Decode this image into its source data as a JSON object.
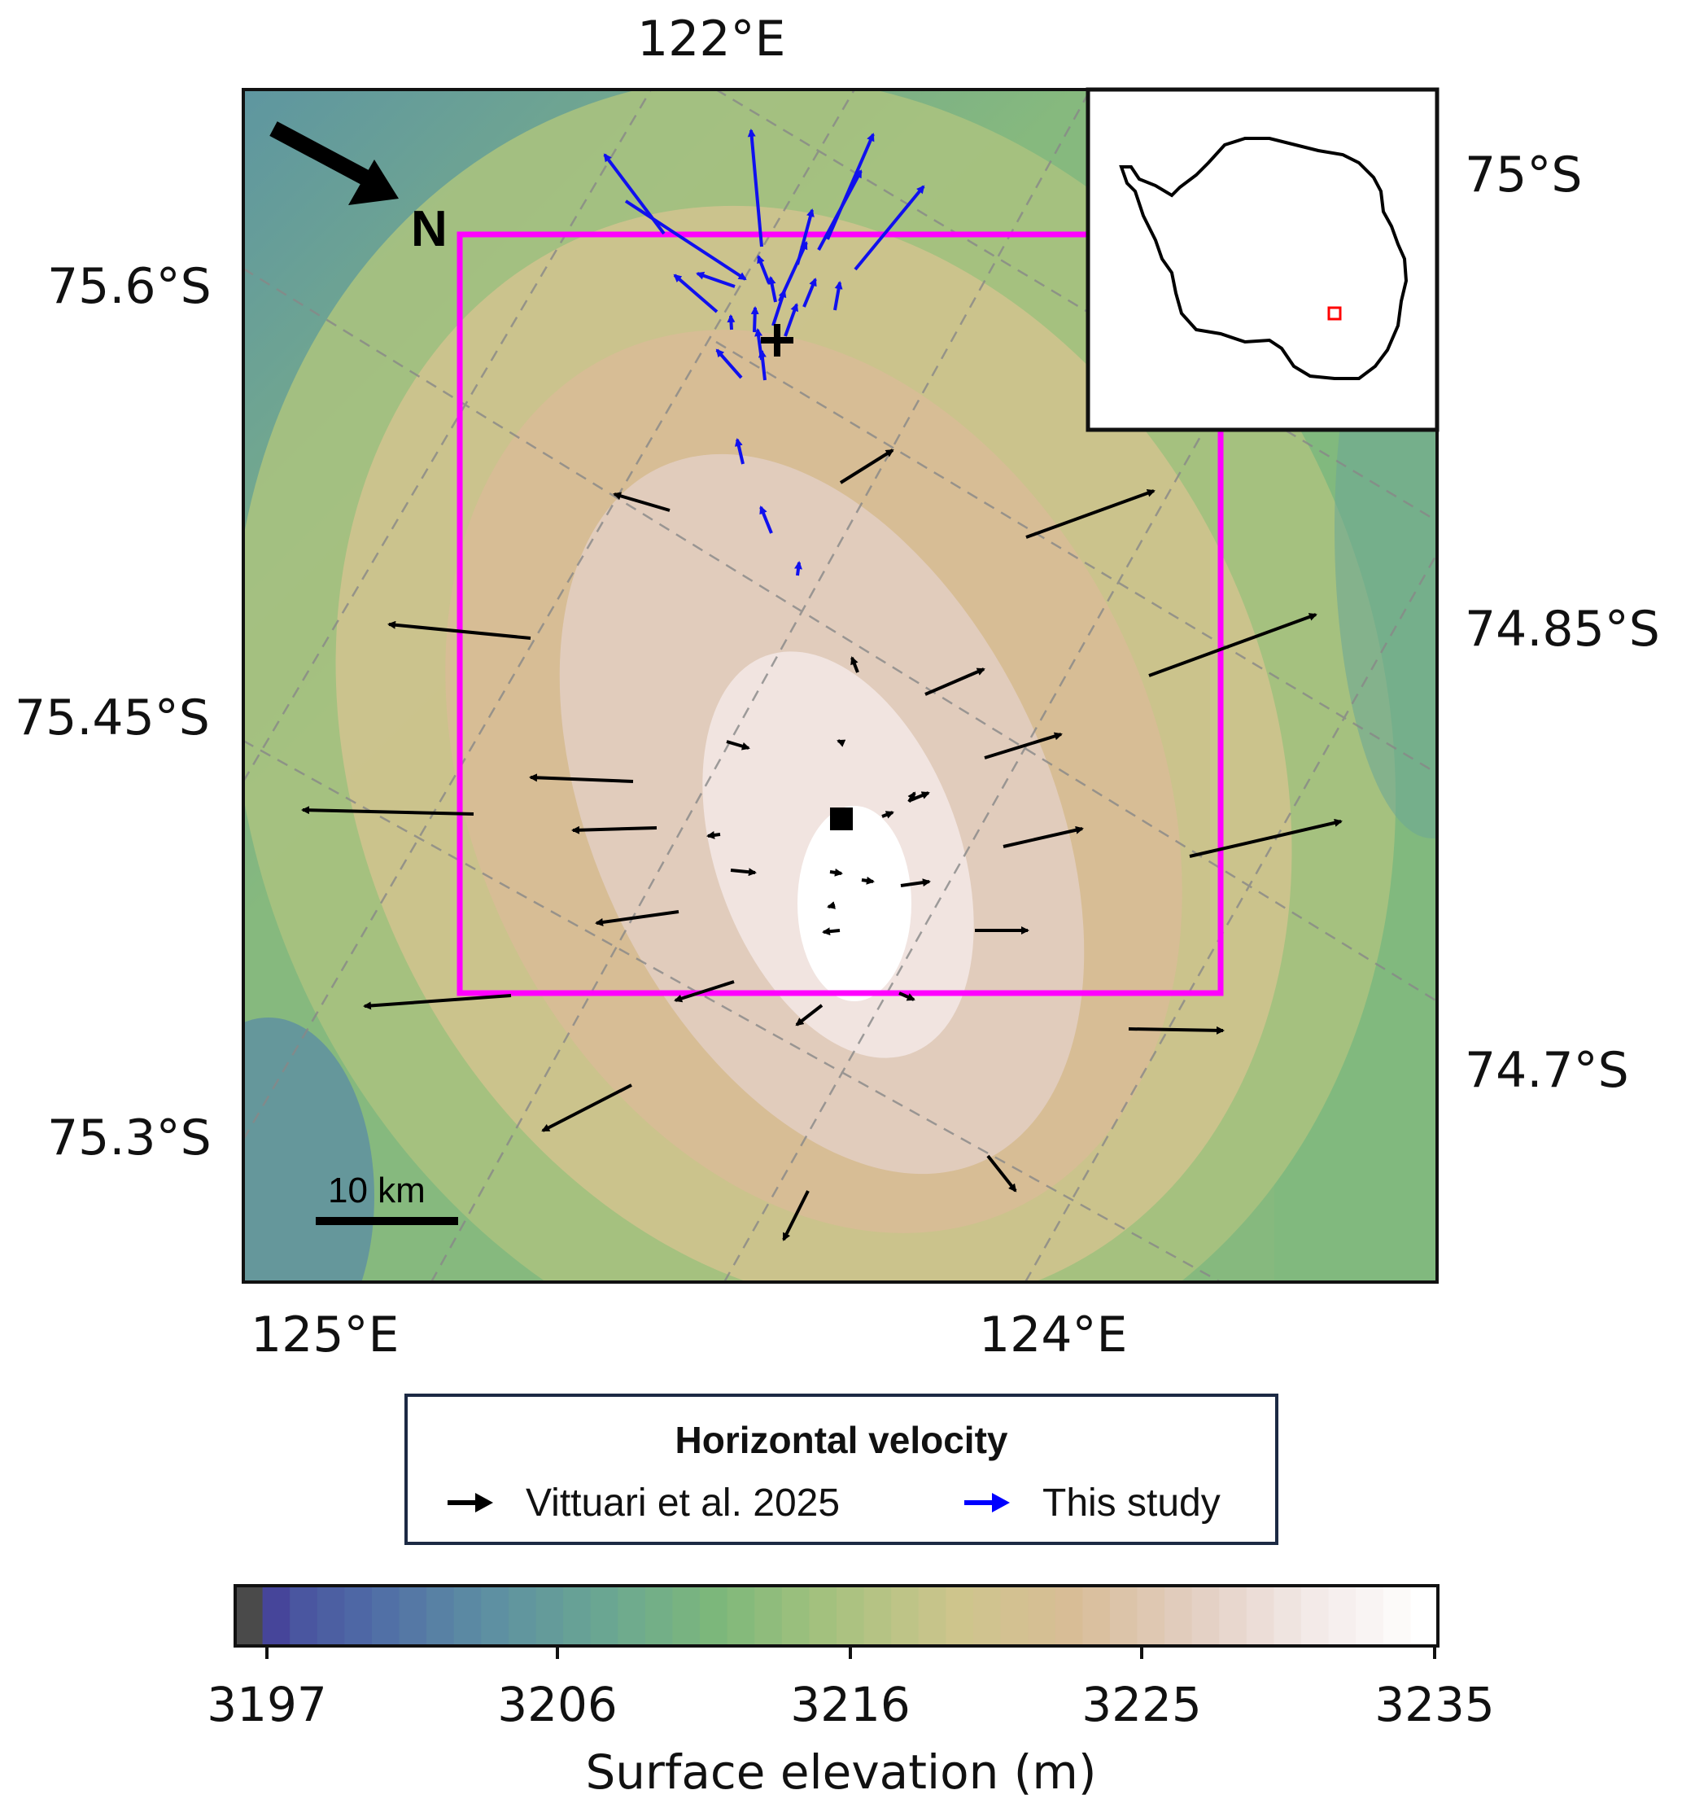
{
  "map": {
    "lon_labels_top": [
      "122°E"
    ],
    "lon_labels_bottom": [
      "125°E",
      "124°E"
    ],
    "lat_labels_left": [
      "75.6°S",
      "75.45°S",
      "75.3°S"
    ],
    "lat_labels_right": [
      "75°S",
      "74.85°S",
      "74.7°S"
    ],
    "north_label": "N",
    "scale_bar_label": "10 km",
    "boundary_color": "#ff00ff",
    "velocity_colors": {
      "vittuari": "#000000",
      "this_study": "#0000ff"
    }
  },
  "legend": {
    "title": "Horizontal velocity",
    "items": [
      {
        "label": "Vittuari et al. 2025",
        "color": "#000000"
      },
      {
        "label": "This study",
        "color": "#0000ff"
      }
    ]
  },
  "colorbar": {
    "label": "Surface elevation (m)",
    "ticks": [
      "3197",
      "3206",
      "3216",
      "3225",
      "3235"
    ],
    "colors": [
      "#4a4a4a",
      "#46459a",
      "#4f6aa6",
      "#5d8ea3",
      "#6aa693",
      "#7db87a",
      "#a8c27f",
      "#cdc58c",
      "#d8bd96",
      "#e2cdc0",
      "#f2e8e6",
      "#ffffff"
    ]
  },
  "inset": {
    "description_icon": "antarctica-outline-icon",
    "marker_color": "#ff0000"
  }
}
